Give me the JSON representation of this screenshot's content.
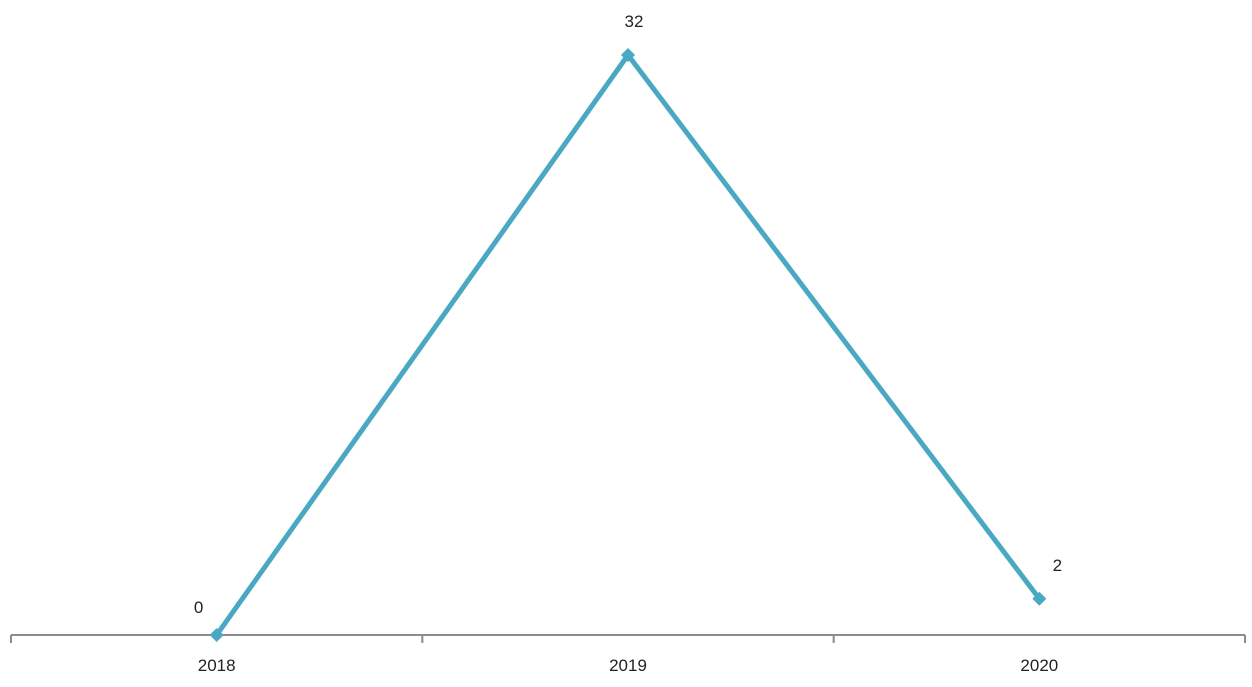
{
  "chart_data": {
    "type": "line",
    "categories": [
      "2018",
      "2019",
      "2020"
    ],
    "series": [
      {
        "values": [
          0,
          32,
          2
        ],
        "color": "#4aa8c2",
        "marker": "diamond"
      }
    ],
    "data_labels": [
      "0",
      "32",
      "2"
    ],
    "title": "",
    "xlabel": "",
    "ylabel": "",
    "ylim": [
      0,
      34
    ],
    "y_axis_visible": false,
    "grid": false,
    "legend": "none",
    "axis_color": "#8c8c8c"
  }
}
